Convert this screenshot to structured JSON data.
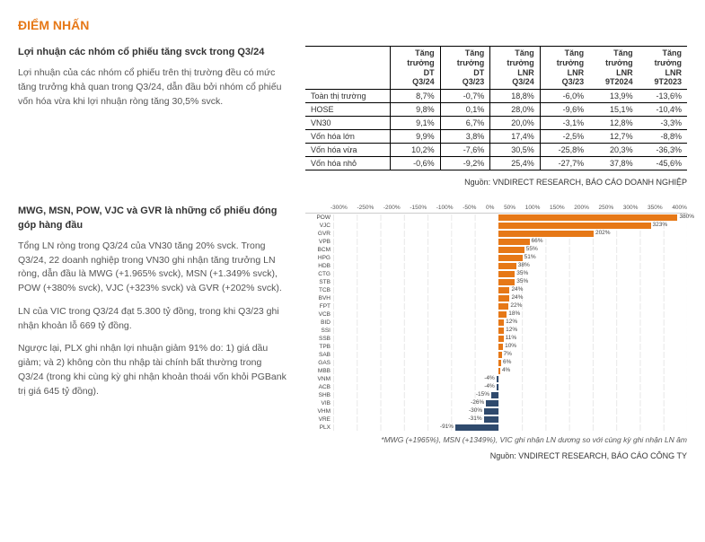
{
  "page_title": "ĐIỂM NHẤN",
  "section1": {
    "heading": "Lợi nhuận các nhóm cổ phiếu tăng svck trong Q3/24",
    "paragraph": "Lợi nhuận của các nhóm cổ phiếu trên thị trường đều có mức tăng trưởng khả quan trong Q3/24, dẫn đầu bởi nhóm cổ phiếu vốn hóa vừa khi lợi nhuận ròng tăng 30,5% svck.",
    "table": {
      "columns": [
        "",
        "Tăng trưởng DT Q3/24",
        "Tăng trưởng DT Q3/23",
        "Tăng trưởng LNR Q3/24",
        "Tăng trưởng LNR Q3/23",
        "Tăng trưởng LNR 9T2024",
        "Tăng trưởng LNR 9T2023"
      ],
      "highlight_cols": [
        1,
        3
      ],
      "rows": [
        [
          "Toàn thị trường",
          "8,7%",
          "-0,7%",
          "18,8%",
          "-6,0%",
          "13,9%",
          "-13,6%"
        ],
        [
          "HOSE",
          "9,8%",
          "0,1%",
          "28,0%",
          "-9,6%",
          "15,1%",
          "-10,4%"
        ],
        [
          "VN30",
          "9,1%",
          "6,7%",
          "20,0%",
          "-3,1%",
          "12,8%",
          "-3,3%"
        ],
        [
          "Vốn hóa lớn",
          "9,9%",
          "3,8%",
          "17,4%",
          "-2,5%",
          "12,7%",
          "-8,8%"
        ],
        [
          "Vốn hóa vừa",
          "10,2%",
          "-7,6%",
          "30,5%",
          "-25,8%",
          "20,3%",
          "-36,3%"
        ],
        [
          "Vốn hóa nhỏ",
          "-0,6%",
          "-9,2%",
          "25,4%",
          "-27,7%",
          "37,8%",
          "-45,6%"
        ]
      ]
    },
    "source": "Nguồn: VNDIRECT RESEARCH, BÁO CÁO DOANH NGHIỆP"
  },
  "section2": {
    "heading": "MWG, MSN, POW, VJC và GVR là những cổ phiếu đóng góp hàng đầu",
    "p1": "Tổng LN ròng trong Q3/24 của VN30 tăng 20% svck. Trong Q3/24, 22 doanh nghiệp trong VN30 ghi nhận tăng trưởng LN ròng, dẫn đầu là MWG (+1.965% svck), MSN (+1.349% svck), POW (+380% svck), VJC (+323% svck) và GVR (+202% svck).",
    "p2": "LN của VIC trong Q3/24 đạt 5.300 tỷ đồng, trong khi Q3/23 ghi nhận khoản lỗ 669 tỷ đồng.",
    "p3": "Ngược lại, PLX ghi nhận lợi nhuận giảm 91% do: 1) giá dầu giảm; và 2) không còn thu nhập tài chính bất thường trong Q3/24 (trong khi cùng kỳ ghi nhận khoản thoái vốn khỏi PGBank trị giá 645 tỷ đồng).",
    "chart": {
      "x_min": -350,
      "x_max": 400,
      "x_ticks": [
        "-300%",
        "-250%",
        "-200%",
        "-150%",
        "-100%",
        "-50%",
        "0%",
        "50%",
        "100%",
        "150%",
        "200%",
        "250%",
        "300%",
        "350%",
        "400%"
      ],
      "pos_color": "#e67817",
      "neg_color": "#2f4a6d",
      "bars": [
        {
          "name": "POW",
          "value": 380,
          "label": "380%"
        },
        {
          "name": "VJC",
          "value": 323,
          "label": "323%"
        },
        {
          "name": "GVR",
          "value": 202,
          "label": "202%"
        },
        {
          "name": "VPB",
          "value": 66,
          "label": "66%"
        },
        {
          "name": "BCM",
          "value": 55,
          "label": "55%"
        },
        {
          "name": "HPG",
          "value": 51,
          "label": "51%"
        },
        {
          "name": "HDB",
          "value": 38,
          "label": "38%"
        },
        {
          "name": "CTG",
          "value": 35,
          "label": "35%"
        },
        {
          "name": "STB",
          "value": 35,
          "label": "35%"
        },
        {
          "name": "TCB",
          "value": 24,
          "label": "24%"
        },
        {
          "name": "BVH",
          "value": 24,
          "label": "24%"
        },
        {
          "name": "FPT",
          "value": 22,
          "label": "22%"
        },
        {
          "name": "VCB",
          "value": 18,
          "label": "18%"
        },
        {
          "name": "BID",
          "value": 12,
          "label": "12%"
        },
        {
          "name": "SSI",
          "value": 12,
          "label": "12%"
        },
        {
          "name": "SSB",
          "value": 11,
          "label": "11%"
        },
        {
          "name": "TPB",
          "value": 10,
          "label": "10%"
        },
        {
          "name": "SAB",
          "value": 7,
          "label": "7%"
        },
        {
          "name": "GAS",
          "value": 6,
          "label": "6%"
        },
        {
          "name": "MBB",
          "value": 4,
          "label": "4%"
        },
        {
          "name": "VNM",
          "value": -4,
          "label": "-4%"
        },
        {
          "name": "ACB",
          "value": -4,
          "label": "-4%"
        },
        {
          "name": "SHB",
          "value": -15,
          "label": "-15%"
        },
        {
          "name": "VIB",
          "value": -26,
          "label": "-26%"
        },
        {
          "name": "VHM",
          "value": -30,
          "label": "-30%"
        },
        {
          "name": "VRE",
          "value": -31,
          "label": "-31%"
        },
        {
          "name": "PLX",
          "value": -91,
          "label": "-91%"
        }
      ]
    },
    "footnote": "*MWG (+1965%), MSN (+1349%), VIC ghi nhận LN dương so với cùng kỳ ghi nhận LN âm",
    "source": "Nguồn: VNDIRECT RESEARCH, BÁO CÁO CÔNG TY"
  }
}
